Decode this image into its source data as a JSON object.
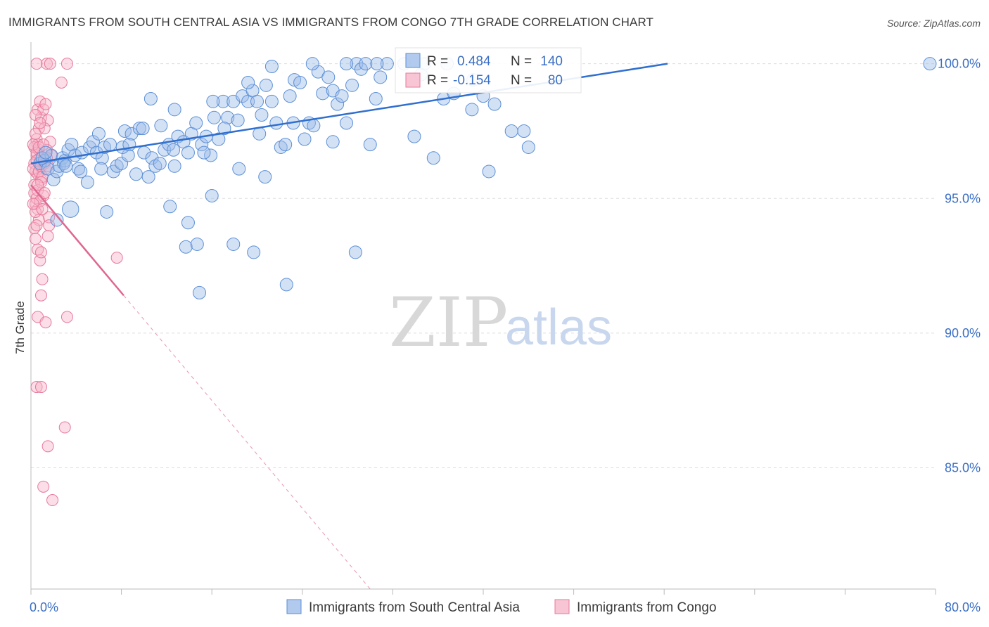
{
  "title": "IMMIGRANTS FROM SOUTH CENTRAL ASIA VS IMMIGRANTS FROM CONGO 7TH GRADE CORRELATION CHART",
  "source": "Source: ZipAtlas.com",
  "watermark": {
    "zip": "ZIP",
    "atlas": "atlas"
  },
  "colors": {
    "blue_fill": "#9dbde9",
    "blue_stroke": "#5b8fd6",
    "blue_line": "#2f6fcf",
    "pink_fill": "#f6b6c9",
    "pink_stroke": "#e8799b",
    "pink_line": "#e06691",
    "tick_text": "#3b6fc4",
    "grid": "#dddddd"
  },
  "stats": {
    "r_label": "R =",
    "n_label": "N =",
    "blue": {
      "r": "0.484",
      "n": "140"
    },
    "pink": {
      "r": "-0.154",
      "n": "80"
    }
  },
  "legend": {
    "blue": "Immigrants from South Central Asia",
    "pink": "Immigrants from Congo"
  },
  "chart_data": {
    "type": "scatter",
    "ylabel": "7th Grade",
    "xlim": [
      0,
      80
    ],
    "ylim": [
      80.5,
      100.8
    ],
    "y_ticks": [
      {
        "v": 100,
        "label": "100.0%"
      },
      {
        "v": 95,
        "label": "95.0%"
      },
      {
        "v": 90,
        "label": "90.0%"
      },
      {
        "v": 85,
        "label": "85.0%"
      }
    ],
    "x_tick_labels": [
      {
        "v": 0,
        "label": "0.0%"
      },
      {
        "v": 80,
        "label": "80.0%"
      }
    ],
    "x_minor_ticks": [
      8,
      16,
      24,
      32,
      40,
      48,
      56,
      64,
      72
    ],
    "grid": true,
    "legend_position": "bottom-center",
    "series": [
      {
        "name": "Immigrants from South Central Asia",
        "color": "blue",
        "trend": {
          "x0": 0.0,
          "y0": 96.3,
          "x1": 56.3,
          "y1": 100.0
        },
        "points": [
          [
            0.8,
            96.3,
            1
          ],
          [
            1.2,
            96.4,
            1
          ],
          [
            1.5,
            96.1,
            1
          ],
          [
            1.8,
            96.6,
            1
          ],
          [
            2.0,
            95.7,
            1
          ],
          [
            2.3,
            96.0,
            1
          ],
          [
            2.5,
            96.2,
            1
          ],
          [
            2.8,
            96.5,
            1
          ],
          [
            3.0,
            96.4,
            1
          ],
          [
            3.3,
            96.8,
            1
          ],
          [
            3.6,
            97.0,
            1
          ],
          [
            3.9,
            96.6,
            1
          ],
          [
            4.2,
            96.1,
            1
          ],
          [
            4.5,
            96.7,
            1
          ],
          [
            5.0,
            95.6,
            1
          ],
          [
            5.2,
            96.9,
            1
          ],
          [
            5.5,
            97.1,
            1
          ],
          [
            5.8,
            96.7,
            1
          ],
          [
            6.0,
            97.4,
            1
          ],
          [
            6.3,
            96.5,
            1
          ],
          [
            6.5,
            96.9,
            1
          ],
          [
            7.0,
            97.0,
            1
          ],
          [
            7.3,
            96.0,
            1
          ],
          [
            7.6,
            96.2,
            1
          ],
          [
            8.0,
            96.3,
            1
          ],
          [
            8.3,
            97.5,
            1
          ],
          [
            8.6,
            96.6,
            1
          ],
          [
            8.9,
            97.4,
            1
          ],
          [
            9.3,
            95.9,
            1
          ],
          [
            9.6,
            97.6,
            1
          ],
          [
            10.0,
            96.7,
            1
          ],
          [
            10.4,
            95.8,
            1
          ],
          [
            10.7,
            96.5,
            1
          ],
          [
            11.0,
            96.2,
            1
          ],
          [
            11.5,
            97.7,
            1
          ],
          [
            11.8,
            96.8,
            1
          ],
          [
            12.2,
            97.0,
            1
          ],
          [
            12.6,
            96.8,
            1
          ],
          [
            13.0,
            97.3,
            1
          ],
          [
            13.5,
            97.1,
            1
          ],
          [
            13.9,
            96.7,
            1
          ],
          [
            14.2,
            97.4,
            1
          ],
          [
            14.6,
            97.8,
            1
          ],
          [
            15.1,
            97.0,
            1
          ],
          [
            15.5,
            97.3,
            1
          ],
          [
            15.9,
            96.6,
            1
          ],
          [
            16.2,
            98.0,
            1
          ],
          [
            16.6,
            97.2,
            1
          ],
          [
            17.0,
            98.6,
            1
          ],
          [
            17.4,
            98.0,
            1
          ],
          [
            17.9,
            98.6,
            1
          ],
          [
            18.3,
            97.9,
            1
          ],
          [
            18.7,
            98.8,
            1
          ],
          [
            19.2,
            98.6,
            1
          ],
          [
            19.6,
            99.0,
            1
          ],
          [
            20.0,
            98.6,
            1
          ],
          [
            20.4,
            98.1,
            1
          ],
          [
            20.8,
            99.2,
            1
          ],
          [
            21.3,
            98.6,
            1
          ],
          [
            21.7,
            97.8,
            1
          ],
          [
            22.1,
            96.9,
            1
          ],
          [
            22.5,
            97.0,
            1
          ],
          [
            22.9,
            98.8,
            1
          ],
          [
            23.3,
            99.4,
            1
          ],
          [
            23.8,
            99.3,
            1
          ],
          [
            24.2,
            97.2,
            1
          ],
          [
            24.6,
            97.8,
            1
          ],
          [
            25.0,
            97.7,
            1
          ],
          [
            25.4,
            99.7,
            1
          ],
          [
            25.8,
            98.9,
            1
          ],
          [
            26.3,
            99.5,
            1
          ],
          [
            26.7,
            99.0,
            1
          ],
          [
            27.1,
            98.5,
            1
          ],
          [
            27.5,
            98.8,
            1
          ],
          [
            27.9,
            97.8,
            1
          ],
          [
            28.4,
            99.2,
            1
          ],
          [
            28.8,
            100.0,
            1
          ],
          [
            29.2,
            99.8,
            1
          ],
          [
            29.6,
            100.0,
            1
          ],
          [
            30.0,
            97.0,
            1
          ],
          [
            30.5,
            98.7,
            1
          ],
          [
            30.9,
            99.5,
            1
          ],
          [
            31.5,
            100.0,
            1
          ],
          [
            33.0,
            100.0,
            1
          ],
          [
            34.5,
            99.6,
            1
          ],
          [
            36.5,
            98.7,
            1
          ],
          [
            39.0,
            98.3,
            1
          ],
          [
            40.0,
            98.8,
            1
          ],
          [
            41.0,
            98.5,
            1
          ],
          [
            42.5,
            97.5,
            1
          ],
          [
            43.6,
            97.5,
            1
          ],
          [
            44.0,
            96.9,
            1
          ],
          [
            35.6,
            96.5,
            1
          ],
          [
            39.1,
            99.4,
            1
          ],
          [
            40.5,
            96.0,
            1
          ],
          [
            10.6,
            98.7,
            1
          ],
          [
            12.3,
            94.7,
            1
          ],
          [
            13.9,
            94.1,
            1
          ],
          [
            13.7,
            93.2,
            1
          ],
          [
            14.7,
            93.3,
            1
          ],
          [
            15.3,
            96.7,
            1
          ],
          [
            16.0,
            95.1,
            1
          ],
          [
            17.9,
            93.3,
            1
          ],
          [
            19.7,
            93.0,
            1
          ],
          [
            18.4,
            96.1,
            1
          ],
          [
            20.7,
            95.8,
            1
          ],
          [
            23.2,
            97.8,
            1
          ],
          [
            22.6,
            91.8,
            1
          ],
          [
            28.7,
            93.0,
            1
          ],
          [
            14.9,
            91.5,
            1
          ],
          [
            6.7,
            94.5,
            1
          ],
          [
            3.5,
            94.6,
            1.3
          ],
          [
            2.3,
            94.2,
            1
          ],
          [
            79.5,
            100.0,
            1
          ],
          [
            37.4,
            98.9,
            1
          ],
          [
            34.8,
            100.0,
            1
          ],
          [
            27.9,
            100.0,
            1
          ],
          [
            30.6,
            100.0,
            1
          ],
          [
            36.8,
            100.0,
            1
          ],
          [
            24.9,
            100.0,
            1
          ],
          [
            21.3,
            99.9,
            1
          ],
          [
            19.2,
            99.3,
            1
          ],
          [
            16.1,
            98.6,
            1
          ],
          [
            12.7,
            98.3,
            1
          ],
          [
            9.9,
            97.6,
            1
          ],
          [
            8.1,
            96.9,
            1
          ],
          [
            6.2,
            96.1,
            1
          ],
          [
            4.4,
            96.0,
            1
          ],
          [
            2.9,
            96.3,
            1
          ],
          [
            3.1,
            96.2,
            1
          ],
          [
            1.0,
            96.5,
            1
          ],
          [
            1.3,
            96.7,
            1
          ],
          [
            11.4,
            96.3,
            1
          ],
          [
            17.1,
            97.6,
            1
          ],
          [
            20.2,
            97.4,
            1
          ],
          [
            26.7,
            97.1,
            1
          ],
          [
            33.9,
            97.3,
            1
          ],
          [
            12.7,
            96.2,
            1
          ],
          [
            8.7,
            97.0,
            1
          ]
        ]
      },
      {
        "name": "Immigrants from Congo",
        "color": "pink",
        "trend": {
          "x0": 0.0,
          "y0": 95.5,
          "x1": 8.2,
          "y1": 91.4,
          "dash_x1": 30.0,
          "dash_y1": 80.5
        },
        "points": [
          [
            0.3,
            96.3,
            1
          ],
          [
            0.4,
            96.0,
            1
          ],
          [
            0.5,
            96.6,
            1
          ],
          [
            0.6,
            95.9,
            1
          ],
          [
            0.7,
            96.8,
            1
          ],
          [
            0.8,
            96.2,
            1
          ],
          [
            0.9,
            95.7,
            1
          ],
          [
            1.0,
            96.4,
            1
          ],
          [
            0.3,
            95.2,
            1
          ],
          [
            0.4,
            94.8,
            1
          ],
          [
            0.5,
            95.0,
            1
          ],
          [
            0.6,
            94.6,
            1
          ],
          [
            0.7,
            94.2,
            1
          ],
          [
            0.3,
            93.9,
            1
          ],
          [
            0.4,
            93.5,
            1
          ],
          [
            0.6,
            93.1,
            1
          ],
          [
            0.8,
            92.7,
            1
          ],
          [
            1.0,
            92.0,
            1
          ],
          [
            0.9,
            91.4,
            1
          ],
          [
            0.6,
            90.6,
            1
          ],
          [
            1.3,
            90.4,
            1
          ],
          [
            3.2,
            90.6,
            1
          ],
          [
            0.5,
            88.0,
            1
          ],
          [
            0.9,
            88.0,
            1
          ],
          [
            3.0,
            86.5,
            1
          ],
          [
            1.5,
            85.8,
            1
          ],
          [
            1.1,
            84.3,
            1
          ],
          [
            1.9,
            83.8,
            1
          ],
          [
            0.5,
            97.2,
            1
          ],
          [
            0.7,
            97.6,
            1
          ],
          [
            0.9,
            98.0,
            1
          ],
          [
            0.6,
            98.3,
            1
          ],
          [
            0.8,
            98.6,
            1
          ],
          [
            1.1,
            98.3,
            1
          ],
          [
            1.3,
            98.5,
            1
          ],
          [
            0.4,
            98.1,
            1
          ],
          [
            1.5,
            97.9,
            1
          ],
          [
            1.2,
            97.6,
            1
          ],
          [
            0.6,
            97.0,
            1
          ],
          [
            1.7,
            97.1,
            1
          ],
          [
            1.4,
            96.8,
            1
          ],
          [
            1.8,
            96.6,
            1
          ],
          [
            1.6,
            94.3,
            1
          ],
          [
            1.5,
            93.6,
            1
          ],
          [
            0.9,
            93.0,
            1
          ],
          [
            0.5,
            100.0,
            1
          ],
          [
            1.4,
            100.0,
            1
          ],
          [
            1.7,
            100.0,
            1
          ],
          [
            3.2,
            100.0,
            1
          ],
          [
            2.7,
            99.3,
            1
          ],
          [
            1.6,
            94.0,
            1
          ],
          [
            7.6,
            92.8,
            1
          ],
          [
            0.3,
            96.9,
            1
          ],
          [
            0.5,
            96.7,
            1
          ],
          [
            0.8,
            96.5,
            1
          ],
          [
            1.2,
            96.3,
            1
          ],
          [
            0.2,
            96.1,
            1
          ],
          [
            0.7,
            96.0,
            1
          ],
          [
            1.0,
            95.8,
            1
          ],
          [
            0.3,
            95.5,
            1
          ],
          [
            0.6,
            95.3,
            1
          ],
          [
            1.1,
            95.1,
            1
          ],
          [
            0.8,
            94.9,
            1
          ],
          [
            0.4,
            94.5,
            1
          ],
          [
            0.9,
            95.6,
            1
          ],
          [
            1.3,
            96.1,
            1
          ],
          [
            0.2,
            97.0,
            1
          ],
          [
            0.5,
            96.4,
            1
          ],
          [
            1.4,
            96.5,
            1
          ],
          [
            0.7,
            96.9,
            1
          ],
          [
            0.9,
            96.2,
            1
          ],
          [
            0.4,
            97.4,
            1
          ],
          [
            1.1,
            97.0,
            1
          ],
          [
            0.6,
            95.5,
            1
          ],
          [
            0.2,
            94.8,
            1
          ],
          [
            1.0,
            94.6,
            1
          ],
          [
            0.5,
            94.0,
            1
          ],
          [
            1.2,
            95.2,
            1
          ],
          [
            0.8,
            97.8,
            1
          ],
          [
            1.5,
            96.2,
            1
          ]
        ]
      }
    ]
  }
}
